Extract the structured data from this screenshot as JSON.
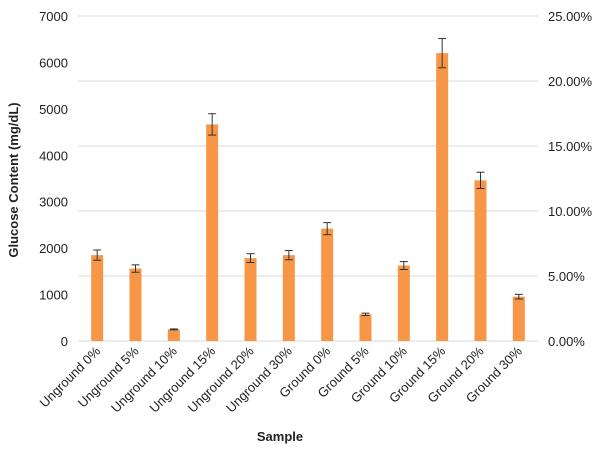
{
  "chart_data": {
    "type": "bar",
    "title": "",
    "xlabel": "Sample",
    "ylabel": "Glucose Content (mg/dL)",
    "ylim": [
      0,
      7000
    ],
    "yticks": [
      "0",
      "1000",
      "2000",
      "3000",
      "4000",
      "5000",
      "6000",
      "7000"
    ],
    "y2lim": [
      0,
      0.25
    ],
    "y2ticks": [
      "0.00%",
      "5.00%",
      "10.00%",
      "15.00%",
      "20.00%",
      "25.00%"
    ],
    "grid": true,
    "bar_color": "#F79646",
    "categories": [
      "Unground 0%",
      "Unground 5%",
      "Unground 10%",
      "Unground 15%",
      "Unground 20%",
      "Unground 30%",
      "Ground 0%",
      "Ground 5%",
      "Ground 10%",
      "Ground 15%",
      "Ground 20%",
      "Ground 30%"
    ],
    "values": [
      1850,
      1560,
      250,
      4665,
      1785,
      1850,
      2420,
      575,
      1625,
      6200,
      3460,
      955
    ],
    "errors": [
      110,
      80,
      10,
      230,
      95,
      100,
      130,
      25,
      85,
      315,
      175,
      50
    ]
  }
}
